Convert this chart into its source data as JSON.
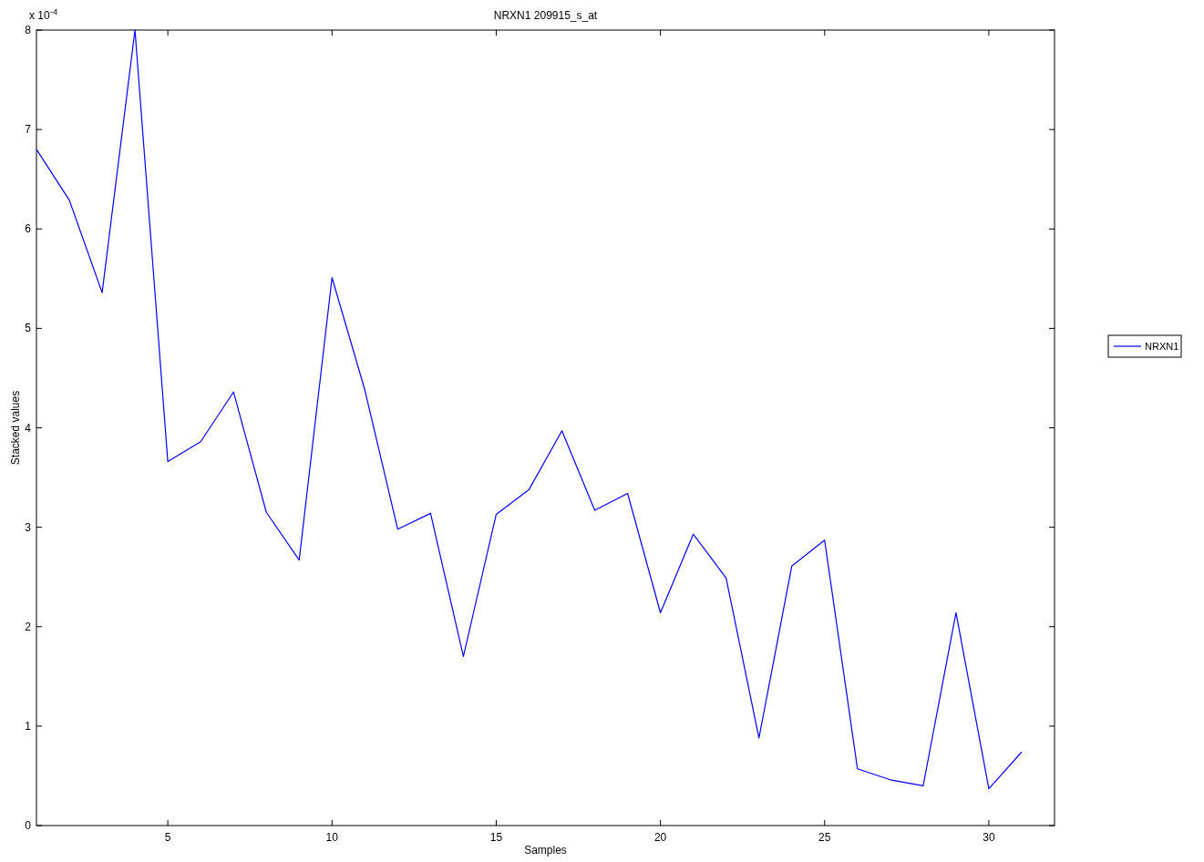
{
  "chart_data": {
    "type": "line",
    "title": "NRXN1 209915_s_at",
    "xlabel": "Samples",
    "ylabel": "Stacked values",
    "annotations": [
      "x 10$^{-4}$"
    ],
    "x": [
      1,
      2,
      3,
      4,
      5,
      6,
      7,
      8,
      9,
      10,
      11,
      12,
      13,
      14,
      15,
      16,
      17,
      18,
      19,
      20,
      21,
      22,
      23,
      24,
      25,
      26,
      27,
      28,
      29,
      30,
      31
    ],
    "series": [
      {
        "name": "NRXN1",
        "color": "#0000ff",
        "values": [
          6.8,
          6.29,
          5.36,
          8.0,
          3.66,
          3.86,
          4.36,
          3.15,
          2.67,
          5.51,
          4.38,
          2.98,
          3.14,
          1.7,
          3.13,
          3.38,
          3.97,
          3.17,
          3.34,
          2.14,
          2.93,
          2.49,
          0.88,
          2.61,
          2.87,
          0.57,
          0.46,
          0.4,
          2.14,
          0.37,
          0.74
        ]
      }
    ],
    "xlim": [
      1,
      32
    ],
    "xticks": [
      5,
      10,
      15,
      20,
      25,
      30
    ],
    "ylim": [
      0,
      8
    ],
    "yticks": [
      0,
      1,
      2,
      3,
      4,
      5,
      6,
      7,
      8
    ],
    "grid": false,
    "legend": "right",
    "marker": "none",
    "line_style": "solid"
  }
}
